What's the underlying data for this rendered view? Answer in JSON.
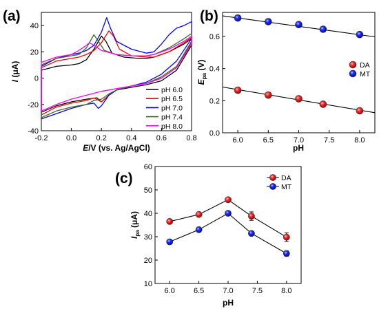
{
  "chart_data": [
    {
      "panel": "(a)",
      "type": "line",
      "xlabel_italic": "E",
      "xlabel_rest": "/V (vs. Ag/AgCl)",
      "ylabel_italic": "I",
      "ylabel_rest": " (μA)",
      "xlim": [
        -0.2,
        0.8
      ],
      "ylim": [
        -40,
        50
      ],
      "xticks": [
        -0.2,
        0.0,
        0.2,
        0.4,
        0.6,
        0.8
      ],
      "xtick_labels": [
        "-0.2",
        "0.0",
        "0.2",
        "0.4",
        "0.6",
        "0.8"
      ],
      "yticks": [
        -40,
        -20,
        0,
        20,
        40
      ],
      "ytick_labels": [
        "-40",
        "-20",
        "0",
        "20",
        "40"
      ],
      "legend_position": "lower-right",
      "series": [
        {
          "name": "pH 6.0",
          "color": "#000000",
          "forward": [
            [
              -0.2,
              6
            ],
            [
              -0.1,
              9
            ],
            [
              0.0,
              10
            ],
            [
              0.05,
              11
            ],
            [
              0.1,
              14
            ],
            [
              0.15,
              22
            ],
            [
              0.2,
              32
            ],
            [
              0.23,
              28
            ],
            [
              0.27,
              19
            ],
            [
              0.35,
              16
            ],
            [
              0.45,
              15
            ],
            [
              0.5,
              15
            ],
            [
              0.55,
              16
            ],
            [
              0.65,
              20
            ],
            [
              0.75,
              26
            ],
            [
              0.8,
              30
            ]
          ],
          "reverse": [
            [
              0.8,
              25
            ],
            [
              0.7,
              6
            ],
            [
              0.6,
              -2
            ],
            [
              0.5,
              -5
            ],
            [
              0.4,
              -7
            ],
            [
              0.3,
              -9
            ],
            [
              0.25,
              -13
            ],
            [
              0.2,
              -18
            ],
            [
              0.17,
              -15
            ],
            [
              0.1,
              -16
            ],
            [
              0.0,
              -18
            ],
            [
              -0.1,
              -21
            ],
            [
              -0.2,
              -26
            ]
          ]
        },
        {
          "name": "pH 6.5",
          "color": "#ff0000",
          "forward": [
            [
              -0.2,
              8
            ],
            [
              -0.1,
              13
            ],
            [
              0.0,
              15
            ],
            [
              0.05,
              16
            ],
            [
              0.1,
              18
            ],
            [
              0.15,
              21
            ],
            [
              0.2,
              27
            ],
            [
              0.25,
              36
            ],
            [
              0.28,
              32
            ],
            [
              0.32,
              22
            ],
            [
              0.4,
              17
            ],
            [
              0.5,
              16
            ],
            [
              0.55,
              16
            ],
            [
              0.65,
              20
            ],
            [
              0.75,
              27
            ],
            [
              0.8,
              31
            ]
          ],
          "reverse": [
            [
              0.8,
              27
            ],
            [
              0.7,
              8
            ],
            [
              0.6,
              0
            ],
            [
              0.5,
              -4
            ],
            [
              0.4,
              -6
            ],
            [
              0.3,
              -9
            ],
            [
              0.25,
              -13
            ],
            [
              0.2,
              -18
            ],
            [
              0.15,
              -15
            ],
            [
              0.1,
              -17
            ],
            [
              0.0,
              -19
            ],
            [
              -0.1,
              -22
            ],
            [
              -0.2,
              -28
            ]
          ]
        },
        {
          "name": "pH 7.0",
          "color": "#0000ff",
          "forward": [
            [
              -0.2,
              9
            ],
            [
              -0.1,
              15
            ],
            [
              0.0,
              18
            ],
            [
              0.05,
              19
            ],
            [
              0.1,
              21
            ],
            [
              0.15,
              25
            ],
            [
              0.2,
              35
            ],
            [
              0.235,
              46
            ],
            [
              0.26,
              38
            ],
            [
              0.3,
              28
            ],
            [
              0.4,
              22
            ],
            [
              0.5,
              19
            ],
            [
              0.55,
              20
            ],
            [
              0.6,
              26
            ],
            [
              0.65,
              33
            ],
            [
              0.7,
              38
            ],
            [
              0.75,
              40
            ],
            [
              0.8,
              43
            ]
          ],
          "reverse": [
            [
              0.8,
              30
            ],
            [
              0.7,
              13
            ],
            [
              0.6,
              3
            ],
            [
              0.5,
              -3
            ],
            [
              0.4,
              -6
            ],
            [
              0.3,
              -9
            ],
            [
              0.25,
              -13
            ],
            [
              0.2,
              -21
            ],
            [
              0.18,
              -23
            ],
            [
              0.15,
              -19
            ],
            [
              0.1,
              -20
            ],
            [
              0.0,
              -23
            ],
            [
              -0.1,
              -27
            ],
            [
              -0.2,
              -31
            ]
          ]
        },
        {
          "name": "pH 7.4",
          "color": "#3a6b1a",
          "forward": [
            [
              -0.2,
              10
            ],
            [
              -0.1,
              15
            ],
            [
              0.0,
              17
            ],
            [
              0.05,
              18
            ],
            [
              0.1,
              23
            ],
            [
              0.15,
              33
            ],
            [
              0.18,
              28
            ],
            [
              0.22,
              21
            ],
            [
              0.3,
              18
            ],
            [
              0.4,
              17
            ],
            [
              0.5,
              17
            ],
            [
              0.55,
              18
            ],
            [
              0.65,
              23
            ],
            [
              0.75,
              30
            ],
            [
              0.8,
              34
            ]
          ],
          "reverse": [
            [
              0.8,
              28
            ],
            [
              0.7,
              9
            ],
            [
              0.6,
              1
            ],
            [
              0.5,
              -4
            ],
            [
              0.4,
              -6
            ],
            [
              0.3,
              -9
            ],
            [
              0.25,
              -12
            ],
            [
              0.2,
              -16
            ],
            [
              0.15,
              -17
            ],
            [
              0.1,
              -20
            ],
            [
              0.0,
              -22
            ],
            [
              -0.1,
              -25
            ],
            [
              -0.2,
              -30
            ]
          ]
        },
        {
          "name": "pH 8.0",
          "color": "#ff00ff",
          "forward": [
            [
              -0.2,
              12
            ],
            [
              -0.1,
              16
            ],
            [
              0.0,
              18
            ],
            [
              0.05,
              21
            ],
            [
              0.1,
              25
            ],
            [
              0.12,
              27
            ],
            [
              0.15,
              25
            ],
            [
              0.2,
              21
            ],
            [
              0.3,
              18
            ],
            [
              0.4,
              17
            ],
            [
              0.5,
              17
            ],
            [
              0.55,
              18
            ],
            [
              0.65,
              22
            ],
            [
              0.75,
              28
            ],
            [
              0.8,
              32
            ]
          ],
          "reverse": [
            [
              0.8,
              26
            ],
            [
              0.7,
              8
            ],
            [
              0.6,
              0
            ],
            [
              0.5,
              -4
            ],
            [
              0.4,
              -6
            ],
            [
              0.3,
              -8
            ],
            [
              0.25,
              -9
            ],
            [
              0.2,
              -10
            ],
            [
              0.1,
              -13
            ],
            [
              0.0,
              -16
            ],
            [
              -0.1,
              -20
            ],
            [
              -0.2,
              -25
            ]
          ]
        }
      ]
    },
    {
      "panel": "(b)",
      "type": "scatter",
      "xlabel": "pH",
      "ylabel_main": "E",
      "ylabel_sub": "pa",
      "ylabel_rest": " (V)",
      "xlim": [
        5.75,
        8.25
      ],
      "ylim": [
        0.0,
        0.75
      ],
      "xticks": [
        6.0,
        6.5,
        7.0,
        7.5,
        8.0
      ],
      "xtick_labels": [
        "6.0",
        "6.5",
        "7.0",
        "7.5",
        "8.0"
      ],
      "yticks": [
        0.0,
        0.2,
        0.4,
        0.6
      ],
      "ytick_labels": [
        "0.0",
        "0.2",
        "0.4",
        "0.6"
      ],
      "legend_position": "right",
      "series": [
        {
          "name": "DA",
          "color": "#ff0000",
          "x": [
            6.0,
            6.5,
            7.0,
            7.4,
            8.0
          ],
          "y": [
            0.265,
            0.235,
            0.212,
            0.178,
            0.137
          ],
          "fit": [
            [
              5.75,
              0.285
            ],
            [
              8.25,
              0.125
            ]
          ]
        },
        {
          "name": "MT",
          "color": "#0000ff",
          "x": [
            6.0,
            6.5,
            7.0,
            7.4,
            8.0
          ],
          "y": [
            0.715,
            0.692,
            0.674,
            0.645,
            0.612
          ],
          "fit": [
            [
              5.75,
              0.728
            ],
            [
              8.25,
              0.598
            ]
          ]
        }
      ]
    },
    {
      "panel": "(c)",
      "type": "line",
      "xlabel": "pH",
      "ylabel_main": "I",
      "ylabel_sub": "pa",
      "ylabel_rest": " (μA)",
      "xlim": [
        5.75,
        8.25
      ],
      "ylim": [
        10,
        60
      ],
      "xticks": [
        6.0,
        6.5,
        7.0,
        7.5,
        8.0
      ],
      "xtick_labels": [
        "6.0",
        "6.5",
        "7.0",
        "7.5",
        "8.0"
      ],
      "yticks": [
        10,
        20,
        30,
        40,
        50,
        60
      ],
      "ytick_labels": [
        "10",
        "20",
        "30",
        "40",
        "50",
        "60"
      ],
      "legend_position": "top-right",
      "series": [
        {
          "name": "DA",
          "color": "#ff0000",
          "x": [
            6.0,
            6.5,
            7.0,
            7.4,
            8.0
          ],
          "y": [
            36.5,
            39.5,
            45.8,
            38.8,
            29.8
          ],
          "err": [
            0.5,
            0.8,
            0.8,
            1.8,
            1.8
          ]
        },
        {
          "name": "MT",
          "color": "#0000ff",
          "x": [
            6.0,
            6.5,
            7.0,
            7.4,
            8.0
          ],
          "y": [
            27.8,
            33.0,
            40.0,
            31.4,
            22.8
          ],
          "err": [
            0.5,
            0.5,
            0.8,
            0.8,
            1.2
          ]
        }
      ]
    }
  ]
}
